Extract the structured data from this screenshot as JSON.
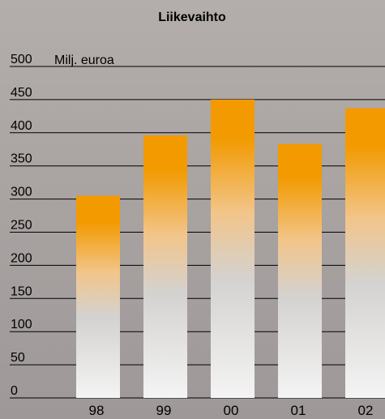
{
  "chart_data": {
    "type": "bar",
    "title": "Liikevaihto",
    "unit_label": "Milj. euroa",
    "categories": [
      "98",
      "99",
      "00",
      "01",
      "02"
    ],
    "values": [
      305,
      396,
      450,
      383,
      437
    ],
    "ylim": [
      0,
      500
    ],
    "yticks": [
      "0",
      "50",
      "100",
      "150",
      "200",
      "250",
      "300",
      "350",
      "400",
      "450",
      "500"
    ],
    "grid": true,
    "colors": {
      "bar_top": "#f29a00",
      "bar_mid": "#f2c58a",
      "bar_low": "#d4d2d0",
      "bar_bottom": "#f4f4f4"
    }
  }
}
